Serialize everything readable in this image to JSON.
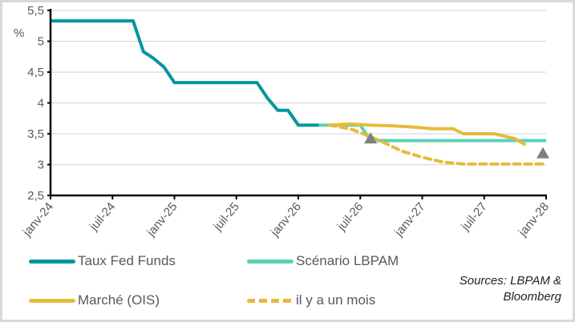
{
  "chart_data": {
    "type": "line",
    "ylabel": "%",
    "ylim": [
      2.5,
      5.5
    ],
    "yticks": [
      "5,5",
      "5",
      "4,5",
      "4",
      "3,5",
      "3",
      "2,5"
    ],
    "ytick_values": [
      5.5,
      5,
      4.5,
      4,
      3.5,
      3,
      2.5
    ],
    "xlim": [
      "2024-01",
      "2028-01"
    ],
    "xticks": [
      "janv-24",
      "juil-24",
      "janv-25",
      "juil-25",
      "janv-26",
      "juil-26",
      "janv-27",
      "juil-27",
      "janv-28"
    ],
    "grid": "horizontal",
    "legend_position": "bottom",
    "series": [
      {
        "name": "Taux Fed Funds",
        "color": "#00979d",
        "style": "solid",
        "points": [
          [
            "2024-01",
            5.33
          ],
          [
            "2024-09",
            5.33
          ],
          [
            "2024-10",
            4.83
          ],
          [
            "2024-11",
            4.72
          ],
          [
            "2024-12",
            4.58
          ],
          [
            "2025-01",
            4.33
          ],
          [
            "2025-09",
            4.33
          ],
          [
            "2025-10",
            4.08
          ],
          [
            "2025-11",
            3.88
          ],
          [
            "2025-12",
            3.88
          ],
          [
            "2026-01",
            3.64
          ],
          [
            "2026-03",
            3.64
          ]
        ]
      },
      {
        "name": "Scénario LBPAM",
        "color": "#5ad1b7",
        "style": "solid",
        "points": [
          [
            "2026-03",
            3.64
          ],
          [
            "2026-07",
            3.64
          ],
          [
            "2026-08",
            3.39
          ],
          [
            "2028-01",
            3.39
          ]
        ]
      },
      {
        "name": "Marché (OIS)",
        "color": "#e5bb3c",
        "style": "solid",
        "points": [
          [
            "2026-04",
            3.64
          ],
          [
            "2026-06",
            3.66
          ],
          [
            "2026-08",
            3.64
          ],
          [
            "2026-10",
            3.63
          ],
          [
            "2026-12",
            3.61
          ],
          [
            "2027-02",
            3.58
          ],
          [
            "2027-04",
            3.58
          ],
          [
            "2027-05",
            3.5
          ],
          [
            "2027-08",
            3.5
          ],
          [
            "2027-10",
            3.42
          ],
          [
            "2027-11",
            3.32
          ]
        ]
      },
      {
        "name": "il y a un mois",
        "color": "#e5bb3c",
        "style": "dashed",
        "points": [
          [
            "2026-04",
            3.64
          ],
          [
            "2026-06",
            3.58
          ],
          [
            "2026-07",
            3.52
          ],
          [
            "2026-09",
            3.38
          ],
          [
            "2026-11",
            3.22
          ],
          [
            "2027-01",
            3.12
          ],
          [
            "2027-03",
            3.04
          ],
          [
            "2027-05",
            3.01
          ],
          [
            "2028-01",
            3.01
          ]
        ]
      }
    ],
    "markers": [
      {
        "shape": "triangle",
        "color": "#7f7f7f",
        "x": "2026-08",
        "y": 3.42
      },
      {
        "shape": "triangle",
        "color": "#7f7f7f",
        "x": "2028-01",
        "y": 3.18
      }
    ],
    "source": [
      "Sources: LBPAM &",
      "Bloomberg"
    ]
  }
}
